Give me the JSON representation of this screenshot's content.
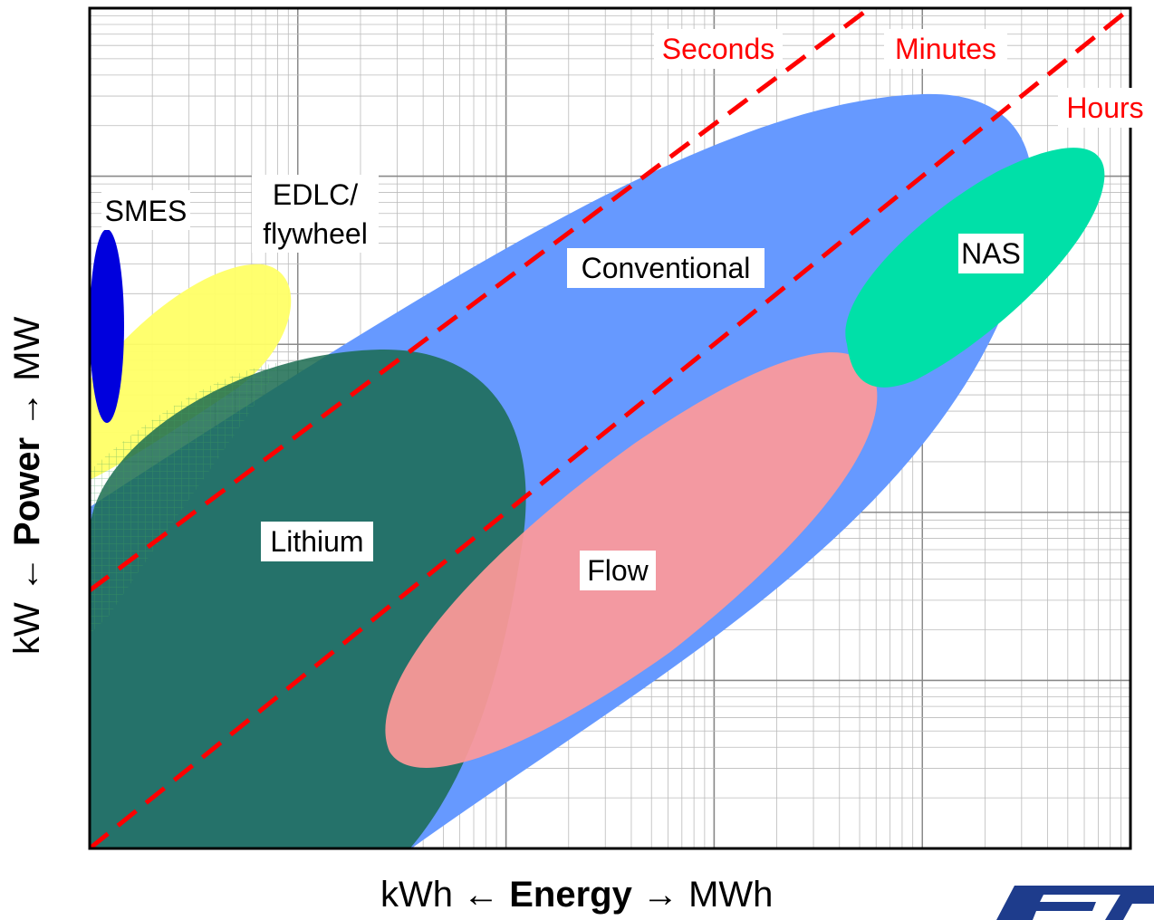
{
  "chart_data": {
    "type": "area",
    "title": "",
    "xlabel": {
      "left": "kWh",
      "left_arrow": "←",
      "center": "Energy",
      "right_arrow": "→",
      "right": "MWh"
    },
    "ylabel": {
      "left": "kW",
      "left_arrow": "←",
      "center": "Power",
      "right_arrow": "→",
      "right": "MW"
    },
    "x_scale": "log",
    "y_scale": "log",
    "grid": true,
    "regions": [
      {
        "name": "Conventional",
        "color": "#6699ff"
      },
      {
        "name": "EDLC/\nflywheel",
        "line1": "EDLC/",
        "line2": "flywheel",
        "color": "#ffff66"
      },
      {
        "name": "SMES",
        "color": "#0000dd"
      },
      {
        "name": "Lithium",
        "color": "#1a6b50"
      },
      {
        "name": "Flow",
        "color": "#ff9999"
      },
      {
        "name": "NAS",
        "color": "#00e0a8"
      }
    ],
    "duration_lines": [
      {
        "label": "Seconds",
        "color": "#ff0000"
      },
      {
        "label": "Minutes",
        "color": "#ff0000"
      },
      {
        "label": "Hours",
        "color": "#ff0000"
      }
    ]
  }
}
